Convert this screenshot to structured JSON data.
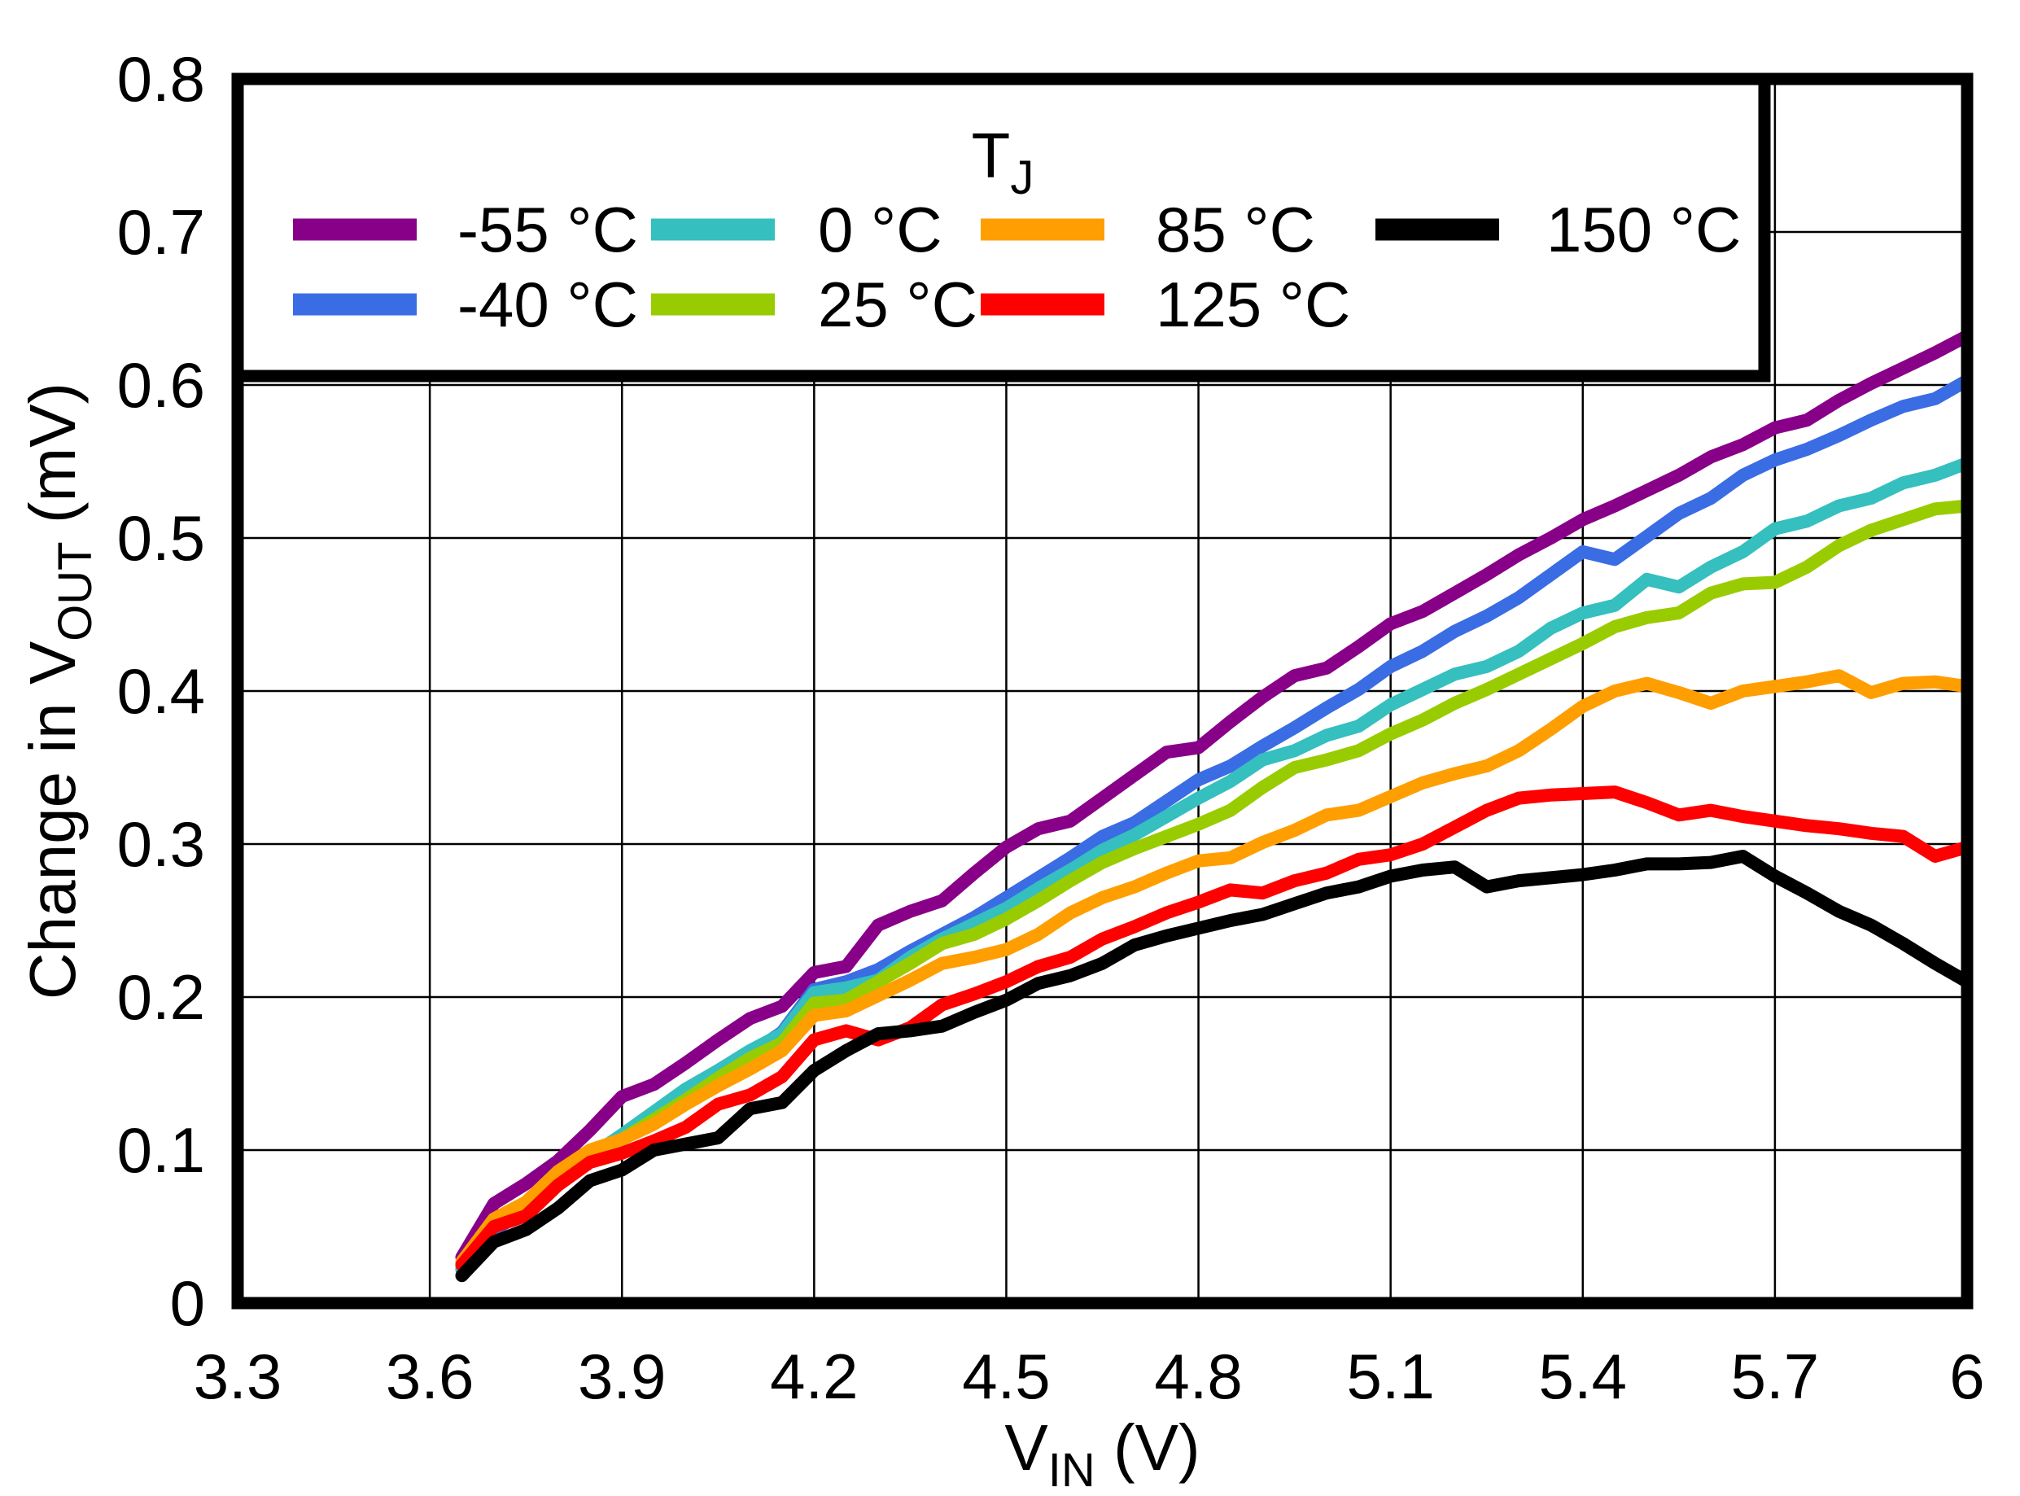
{
  "chart_data": {
    "type": "line",
    "title": "",
    "xlabel": {
      "pre": "V",
      "sub": "IN",
      "post": " (V)"
    },
    "ylabel": {
      "pre": "Change in V",
      "sub": "OUT",
      "post": " (mV)"
    },
    "xlim": [
      3.3,
      6.0
    ],
    "ylim": [
      0,
      0.8
    ],
    "grid": true,
    "x_tick_labels": [
      "3.3",
      "3.6",
      "3.9",
      "4.2",
      "4.5",
      "4.8",
      "5.1",
      "5.4",
      "5.7",
      "6"
    ],
    "x_ticks": [
      3.3,
      3.6,
      3.9,
      4.2,
      4.5,
      4.8,
      5.1,
      5.4,
      5.7,
      6.0
    ],
    "y_tick_labels": [
      "0",
      "0.1",
      "0.2",
      "0.3",
      "0.4",
      "0.5",
      "0.6",
      "0.7",
      "0.8"
    ],
    "y_ticks": [
      0,
      0.1,
      0.2,
      0.3,
      0.4,
      0.5,
      0.6,
      0.7,
      0.8
    ],
    "legend": {
      "title": {
        "pre": "T",
        "sub": "J"
      },
      "position": "top-inside",
      "columns": [
        [
          0,
          1
        ],
        [
          2,
          3
        ],
        [
          4,
          5
        ],
        [
          6
        ]
      ]
    },
    "x": [
      3.65,
      3.7,
      3.75,
      3.8,
      3.85,
      3.9,
      3.95,
      4.0,
      4.05,
      4.1,
      4.15,
      4.2,
      4.25,
      4.3,
      4.35,
      4.4,
      4.45,
      4.5,
      4.55,
      4.6,
      4.65,
      4.7,
      4.75,
      4.8,
      4.85,
      4.9,
      4.95,
      5.0,
      5.05,
      5.1,
      5.15,
      5.2,
      5.25,
      5.3,
      5.35,
      5.4,
      5.45,
      5.5,
      5.55,
      5.6,
      5.65,
      5.7,
      5.75,
      5.8,
      5.85,
      5.9,
      5.95,
      6.0
    ],
    "series": [
      {
        "name": "-55 °C",
        "color": "#880088",
        "values": [
          0.03,
          0.065,
          0.078,
          0.093,
          0.113,
          0.135,
          0.143,
          0.157,
          0.172,
          0.186,
          0.194,
          0.216,
          0.22,
          0.247,
          0.256,
          0.263,
          0.281,
          0.298,
          0.31,
          0.315,
          0.33,
          0.345,
          0.36,
          0.363,
          0.38,
          0.396,
          0.41,
          0.415,
          0.429,
          0.444,
          0.452,
          0.464,
          0.476,
          0.489,
          0.5,
          0.512,
          0.521,
          0.531,
          0.541,
          0.553,
          0.561,
          0.572,
          0.577,
          0.59,
          0.601,
          0.611,
          0.621,
          0.632
        ]
      },
      {
        "name": "-40 °C",
        "color": "#3A6CE4",
        "values": [
          0.022,
          0.048,
          0.06,
          0.078,
          0.094,
          0.108,
          0.121,
          0.136,
          0.151,
          0.163,
          0.177,
          0.205,
          0.21,
          0.218,
          0.23,
          0.241,
          0.252,
          0.265,
          0.278,
          0.291,
          0.305,
          0.314,
          0.328,
          0.342,
          0.351,
          0.364,
          0.376,
          0.389,
          0.401,
          0.416,
          0.426,
          0.439,
          0.449,
          0.461,
          0.476,
          0.491,
          0.486,
          0.501,
          0.516,
          0.526,
          0.541,
          0.551,
          0.558,
          0.567,
          0.577,
          0.586,
          0.591,
          0.603
        ]
      },
      {
        "name": "0 °C",
        "color": "#35BFBF",
        "values": [
          0.023,
          0.05,
          0.062,
          0.081,
          0.096,
          0.11,
          0.125,
          0.14,
          0.152,
          0.165,
          0.176,
          0.203,
          0.206,
          0.211,
          0.226,
          0.238,
          0.248,
          0.258,
          0.271,
          0.283,
          0.296,
          0.306,
          0.318,
          0.33,
          0.341,
          0.355,
          0.361,
          0.371,
          0.377,
          0.391,
          0.401,
          0.411,
          0.416,
          0.426,
          0.441,
          0.451,
          0.456,
          0.473,
          0.468,
          0.481,
          0.491,
          0.506,
          0.511,
          0.521,
          0.526,
          0.536,
          0.541,
          0.549
        ]
      },
      {
        "name": "25 °C",
        "color": "#99CC00",
        "values": [
          0.025,
          0.053,
          0.062,
          0.08,
          0.095,
          0.107,
          0.12,
          0.133,
          0.147,
          0.16,
          0.17,
          0.196,
          0.198,
          0.21,
          0.222,
          0.235,
          0.241,
          0.251,
          0.263,
          0.276,
          0.288,
          0.297,
          0.305,
          0.313,
          0.322,
          0.337,
          0.35,
          0.355,
          0.361,
          0.372,
          0.381,
          0.392,
          0.401,
          0.411,
          0.421,
          0.431,
          0.442,
          0.448,
          0.451,
          0.464,
          0.47,
          0.471,
          0.481,
          0.495,
          0.505,
          0.512,
          0.519,
          0.521
        ]
      },
      {
        "name": "85 °C",
        "color": "#FF9E00",
        "values": [
          0.027,
          0.055,
          0.066,
          0.086,
          0.1,
          0.107,
          0.117,
          0.13,
          0.142,
          0.153,
          0.165,
          0.188,
          0.191,
          0.201,
          0.211,
          0.222,
          0.226,
          0.231,
          0.241,
          0.255,
          0.265,
          0.272,
          0.281,
          0.289,
          0.291,
          0.301,
          0.309,
          0.319,
          0.322,
          0.331,
          0.34,
          0.346,
          0.351,
          0.361,
          0.375,
          0.39,
          0.4,
          0.405,
          0.399,
          0.392,
          0.4,
          0.403,
          0.406,
          0.41,
          0.399,
          0.405,
          0.406,
          0.403
        ]
      },
      {
        "name": "125 °C",
        "color": "#FF0000",
        "values": [
          0.025,
          0.05,
          0.057,
          0.077,
          0.092,
          0.098,
          0.106,
          0.115,
          0.13,
          0.136,
          0.148,
          0.172,
          0.178,
          0.172,
          0.18,
          0.195,
          0.202,
          0.21,
          0.22,
          0.226,
          0.238,
          0.246,
          0.255,
          0.262,
          0.27,
          0.268,
          0.276,
          0.281,
          0.29,
          0.293,
          0.3,
          0.311,
          0.322,
          0.33,
          0.332,
          0.333,
          0.334,
          0.327,
          0.319,
          0.322,
          0.318,
          0.315,
          0.312,
          0.31,
          0.307,
          0.305,
          0.292,
          0.298
        ]
      },
      {
        "name": "150 °C",
        "color": "#000000",
        "values": [
          0.018,
          0.04,
          0.048,
          0.062,
          0.08,
          0.087,
          0.1,
          0.104,
          0.108,
          0.127,
          0.131,
          0.152,
          0.165,
          0.176,
          0.178,
          0.181,
          0.19,
          0.198,
          0.209,
          0.214,
          0.222,
          0.234,
          0.24,
          0.245,
          0.25,
          0.254,
          0.261,
          0.268,
          0.272,
          0.279,
          0.283,
          0.285,
          0.272,
          0.276,
          0.278,
          0.28,
          0.283,
          0.287,
          0.287,
          0.288,
          0.292,
          0.279,
          0.268,
          0.256,
          0.247,
          0.235,
          0.222,
          0.21
        ]
      }
    ]
  }
}
